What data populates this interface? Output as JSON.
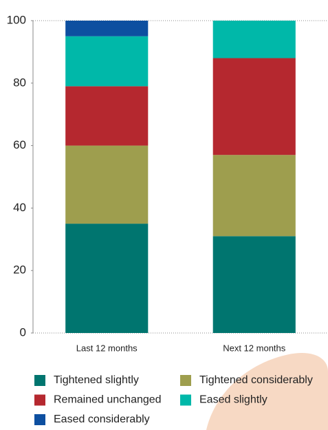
{
  "chart_data": {
    "type": "stacked_bar",
    "categories": [
      "Last 12 months",
      "Next 12 months"
    ],
    "series": [
      {
        "name": "Tightened slightly",
        "color": "#00756f",
        "values": [
          35,
          31
        ]
      },
      {
        "name": "Tightened considerably",
        "color": "#9e9e4e",
        "values": [
          25,
          26
        ]
      },
      {
        "name": "Remained unchanged",
        "color": "#b5282f",
        "values": [
          19,
          31
        ]
      },
      {
        "name": "Eased slightly",
        "color": "#00b8a9",
        "values": [
          16,
          12
        ]
      },
      {
        "name": "Eased considerably",
        "color": "#0d4fa0",
        "values": [
          5,
          0
        ]
      }
    ],
    "ylim": [
      0,
      100
    ],
    "yticks": [
      0,
      20,
      40,
      60,
      80,
      100
    ],
    "grid": false
  }
}
